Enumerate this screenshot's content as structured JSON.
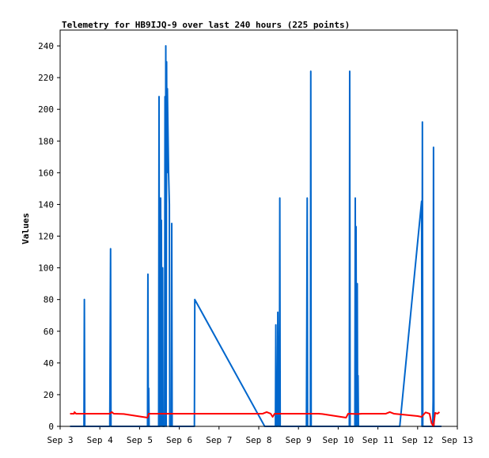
{
  "chart_data": {
    "type": "line",
    "title": "Telemetry for HB9IJQ-9 over last 240 hours (225 points)",
    "xlabel": "",
    "ylabel": "Values",
    "xlim": [
      3,
      13
    ],
    "ylim": [
      0,
      250
    ],
    "x_ticks": [
      {
        "x": 3,
        "label": "Sep 3"
      },
      {
        "x": 4,
        "label": "Sep 4"
      },
      {
        "x": 5,
        "label": "Sep 5"
      },
      {
        "x": 6,
        "label": "Sep 6"
      },
      {
        "x": 7,
        "label": "Sep 7"
      },
      {
        "x": 8,
        "label": "Sep 8"
      },
      {
        "x": 9,
        "label": "Sep 9"
      },
      {
        "x": 10,
        "label": "Sep 10"
      },
      {
        "x": 11,
        "label": "Sep 11"
      },
      {
        "x": 12,
        "label": "Sep 12"
      },
      {
        "x": 13,
        "label": "Sep 13"
      }
    ],
    "y_ticks": [
      0,
      20,
      40,
      60,
      80,
      100,
      120,
      140,
      160,
      180,
      200,
      220,
      240
    ],
    "grid": false,
    "legend": "none",
    "series": [
      {
        "color": "#0066cc",
        "points": [
          [
            3.25,
            0
          ],
          [
            3.6,
            0
          ],
          [
            3.61,
            80
          ],
          [
            3.62,
            0
          ],
          [
            4.25,
            0
          ],
          [
            4.26,
            56
          ],
          [
            4.27,
            112
          ],
          [
            4.28,
            0
          ],
          [
            5.2,
            0
          ],
          [
            5.21,
            96
          ],
          [
            5.22,
            0
          ],
          [
            5.23,
            24
          ],
          [
            5.24,
            0
          ],
          [
            5.48,
            0
          ],
          [
            5.49,
            208
          ],
          [
            5.5,
            0
          ],
          [
            5.52,
            0
          ],
          [
            5.53,
            144
          ],
          [
            5.54,
            72
          ],
          [
            5.55,
            130
          ],
          [
            5.56,
            0
          ],
          [
            5.58,
            100
          ],
          [
            5.59,
            0
          ],
          [
            5.63,
            0
          ],
          [
            5.64,
            208
          ],
          [
            5.65,
            20
          ],
          [
            5.66,
            240
          ],
          [
            5.67,
            0
          ],
          [
            5.68,
            230
          ],
          [
            5.69,
            160
          ],
          [
            5.7,
            213
          ],
          [
            5.71,
            195
          ],
          [
            5.73,
            160
          ],
          [
            5.75,
            140
          ],
          [
            5.76,
            0
          ],
          [
            5.8,
            0
          ],
          [
            5.81,
            128
          ],
          [
            5.82,
            0
          ],
          [
            6.38,
            0
          ],
          [
            6.39,
            80
          ],
          [
            8.15,
            0
          ],
          [
            8.42,
            0
          ],
          [
            8.43,
            64
          ],
          [
            8.44,
            0
          ],
          [
            8.47,
            0
          ],
          [
            8.48,
            72
          ],
          [
            8.49,
            32
          ],
          [
            8.5,
            0
          ],
          [
            8.52,
            0
          ],
          [
            8.53,
            144
          ],
          [
            8.54,
            0
          ],
          [
            9.2,
            0
          ],
          [
            9.21,
            64
          ],
          [
            9.22,
            144
          ],
          [
            9.23,
            0
          ],
          [
            9.3,
            0
          ],
          [
            9.31,
            224
          ],
          [
            9.32,
            0
          ],
          [
            10.28,
            0
          ],
          [
            10.29,
            224
          ],
          [
            10.3,
            0
          ],
          [
            10.42,
            0
          ],
          [
            10.43,
            144
          ],
          [
            10.44,
            0
          ],
          [
            10.45,
            126
          ],
          [
            10.46,
            0
          ],
          [
            10.48,
            90
          ],
          [
            10.49,
            0
          ],
          [
            10.5,
            32
          ],
          [
            10.51,
            0
          ],
          [
            11.55,
            0
          ],
          [
            12.1,
            142
          ],
          [
            12.11,
            0
          ],
          [
            12.12,
            192
          ],
          [
            12.13,
            0
          ],
          [
            12.38,
            0
          ],
          [
            12.39,
            16
          ],
          [
            12.4,
            176
          ],
          [
            12.41,
            0
          ],
          [
            12.6,
            0
          ]
        ]
      },
      {
        "color": "#ff0000",
        "points": [
          [
            3.25,
            8
          ],
          [
            3.35,
            8
          ],
          [
            3.36,
            9
          ],
          [
            3.4,
            8
          ],
          [
            4.2,
            8
          ],
          [
            4.25,
            8
          ],
          [
            4.3,
            9
          ],
          [
            4.35,
            8
          ],
          [
            4.6,
            7.8
          ],
          [
            5.2,
            5.5
          ],
          [
            5.23,
            8
          ],
          [
            8.1,
            8
          ],
          [
            8.2,
            9
          ],
          [
            8.3,
            8
          ],
          [
            8.35,
            6
          ],
          [
            8.4,
            8
          ],
          [
            9.5,
            8
          ],
          [
            9.6,
            7.8
          ],
          [
            10.2,
            5.5
          ],
          [
            10.25,
            8
          ],
          [
            10.5,
            7.8
          ],
          [
            10.6,
            8
          ],
          [
            11.2,
            8
          ],
          [
            11.3,
            9
          ],
          [
            11.4,
            8
          ],
          [
            12.0,
            6.5
          ],
          [
            12.1,
            6
          ],
          [
            12.2,
            8.8
          ],
          [
            12.3,
            8
          ],
          [
            12.35,
            2
          ],
          [
            12.4,
            0
          ],
          [
            12.44,
            8.5
          ],
          [
            12.5,
            8
          ],
          [
            12.55,
            9
          ]
        ]
      }
    ]
  }
}
